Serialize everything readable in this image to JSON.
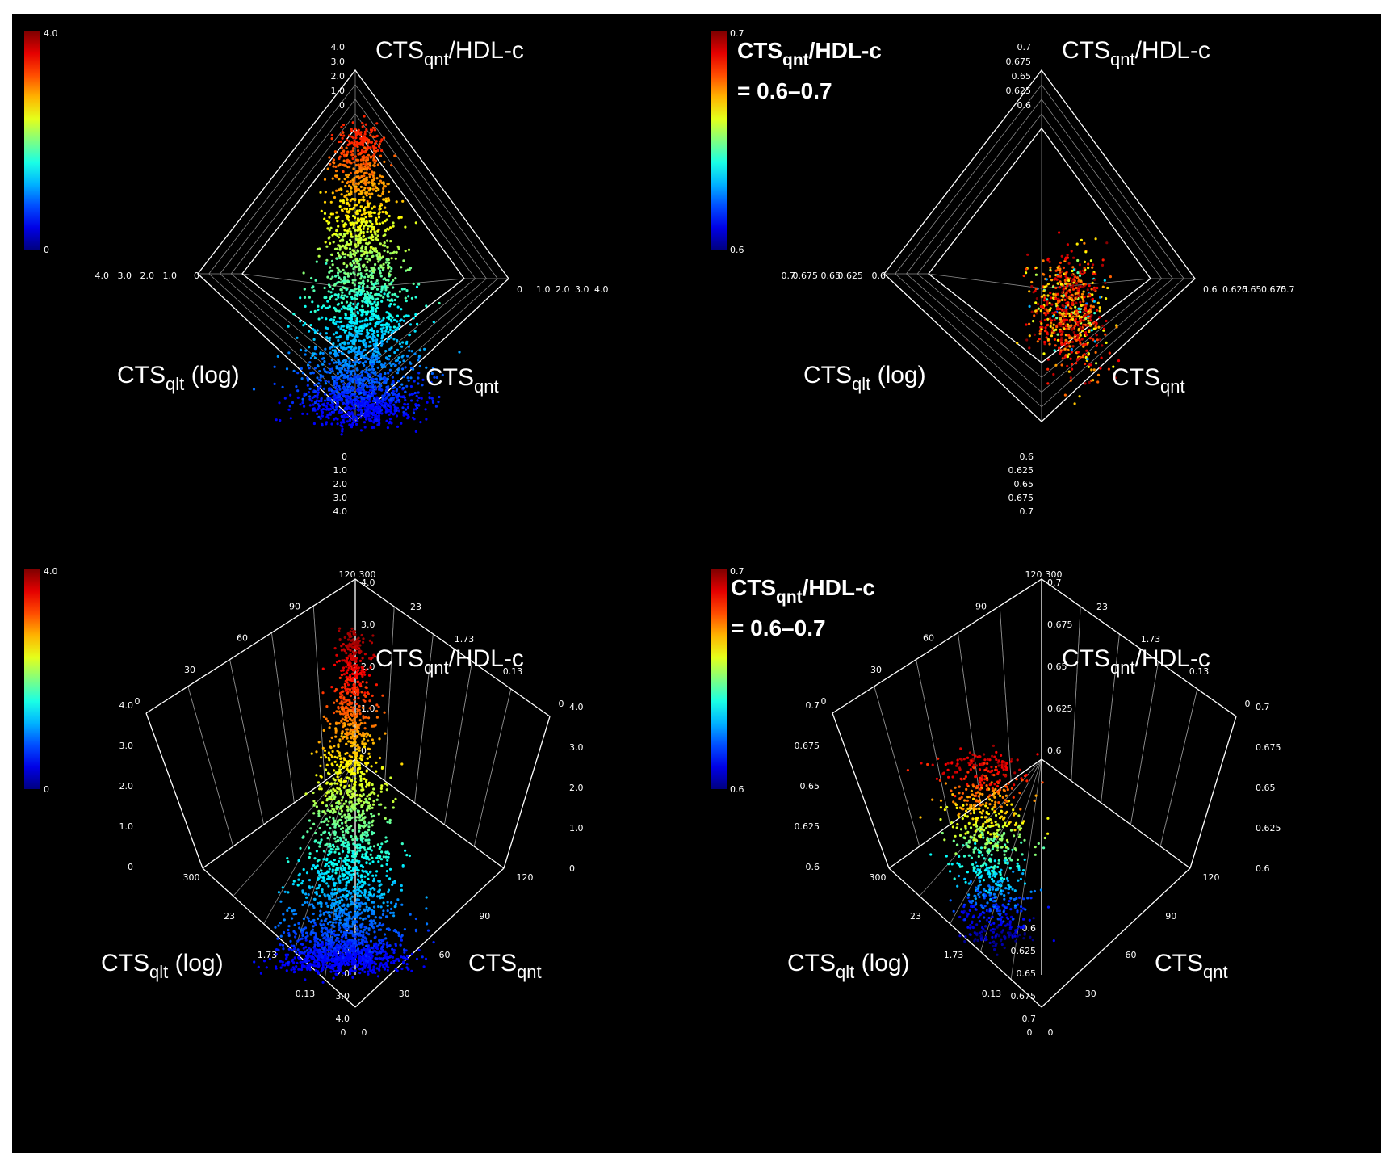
{
  "figure": {
    "panels": [
      {
        "id": "top-left",
        "colorbar": {
          "max_label": "4.0",
          "min_label": "0"
        },
        "note": null,
        "axis_labels": {
          "top": {
            "main": "CTS",
            "sub": "qnt",
            "rest": "/HDL-c"
          },
          "left": {
            "main": "CTS",
            "sub": "qlt",
            "rest": " (log)"
          },
          "right": {
            "main": "CTS",
            "sub": "qnt",
            "rest": ""
          }
        }
      },
      {
        "id": "top-right",
        "colorbar": {
          "max_label": "0.7",
          "min_label": "0.6"
        },
        "note": {
          "main": "CTS",
          "sub": "qnt",
          "rest": "/HDL-c",
          "line2": "= 0.6–0.7"
        },
        "axis_labels": {
          "top": {
            "main": "CTS",
            "sub": "qnt",
            "rest": "/HDL-c"
          },
          "left": {
            "main": "CTS",
            "sub": "qlt",
            "rest": " (log)"
          },
          "right": {
            "main": "CTS",
            "sub": "qnt",
            "rest": ""
          }
        }
      },
      {
        "id": "bottom-left",
        "colorbar": {
          "max_label": "4.0",
          "min_label": "0"
        },
        "note": null,
        "axis_labels": {
          "top": {
            "main": "CTS",
            "sub": "qnt",
            "rest": "/HDL-c"
          },
          "left": {
            "main": "CTS",
            "sub": "qlt",
            "rest": " (log)"
          },
          "right": {
            "main": "CTS",
            "sub": "qnt",
            "rest": ""
          }
        }
      },
      {
        "id": "bottom-right",
        "colorbar": {
          "max_label": "0.7",
          "min_label": "0.6"
        },
        "note": {
          "main": "CTS",
          "sub": "qnt",
          "rest": "/HDL-c",
          "line2": "= 0.6–0.7"
        },
        "axis_labels": {
          "top": {
            "main": "CTS",
            "sub": "qnt",
            "rest": "/HDL-c"
          },
          "left": {
            "main": "CTS",
            "sub": "qlt",
            "rest": " (log)"
          },
          "right": {
            "main": "CTS",
            "sub": "qnt",
            "rest": ""
          }
        }
      }
    ]
  },
  "chart_data": [
    {
      "type": "scatter",
      "panel": "top-left",
      "view": "top-down 3D cube",
      "title": "",
      "color_variable": "CTSqnt/HDL-c",
      "color_range": [
        0,
        4.0
      ],
      "axes": {
        "vertical": {
          "label": "CTSqnt/HDL-c",
          "ticks": [
            "0",
            "1.0",
            "2.0",
            "3.0",
            "4.0"
          ],
          "range": [
            0,
            4.0
          ]
        },
        "left": {
          "label": "CTSqlt (log)",
          "ticks": [
            "0",
            "1.0",
            "2.0",
            "3.0",
            "4.0"
          ]
        },
        "right": {
          "label": "CTSqnt",
          "ticks": [
            "0",
            "1.0",
            "2.0",
            "3.0",
            "4.0"
          ]
        }
      },
      "cloud": {
        "n_points": 2600,
        "value_range": [
          0,
          4.0
        ],
        "description": "dense elongated cloud, blue/cyan at low values, green toward higher values"
      }
    },
    {
      "type": "scatter",
      "panel": "top-right",
      "view": "top-down 3D cube",
      "title": "",
      "color_variable": "CTSqnt/HDL-c",
      "color_range": [
        0.6,
        0.7
      ],
      "axes": {
        "vertical": {
          "label": "CTSqnt/HDL-c",
          "ticks": [
            "0.6",
            "0.625",
            "0.65",
            "0.675",
            "0.7"
          ],
          "range": [
            0.6,
            0.7
          ]
        },
        "left": {
          "label": "CTSqlt (log)",
          "ticks": [
            "0.6",
            "0.625",
            "0.65",
            "0.675",
            "0.7"
          ]
        },
        "right": {
          "label": "CTSqnt",
          "ticks": [
            "0.6",
            "0.625",
            "0.65",
            "0.675",
            "0.7"
          ]
        }
      },
      "cloud": {
        "n_points": 700,
        "value_range": [
          0.6,
          0.7
        ],
        "description": "subset with CTSqnt/HDL-c between 0.6 and 0.7, mostly orange/red"
      }
    },
    {
      "type": "scatter",
      "panel": "bottom-left",
      "view": "oblique 3D",
      "title": "",
      "color_variable": "CTSqnt/HDL-c",
      "color_range": [
        0,
        4.0
      ],
      "axes": {
        "vertical": {
          "label": "CTSqnt/HDL-c",
          "ticks": [
            "0",
            "1.0",
            "2.0",
            "3.0",
            "4.0"
          ],
          "range": [
            0,
            4.0
          ]
        },
        "CTSqlt (log)": {
          "label": "CTSqlt (log)",
          "ticks": [
            "0",
            "0.13",
            "1.73",
            "23",
            "300"
          ]
        },
        "CTSqnt": {
          "label": "CTSqnt",
          "ticks": [
            "0",
            "30",
            "60",
            "90",
            "120"
          ]
        }
      },
      "cloud": {
        "n_points": 2600,
        "value_range": [
          0,
          4.0
        ],
        "description": "tall column of points, blue at base rising through cyan and green to yellow/orange at top"
      }
    },
    {
      "type": "scatter",
      "panel": "bottom-right",
      "view": "oblique 3D",
      "title": "",
      "color_variable": "CTSqnt/HDL-c",
      "color_range": [
        0.6,
        0.7
      ],
      "axes": {
        "vertical": {
          "label": "CTSqnt/HDL-c",
          "ticks": [
            "0.6",
            "0.625",
            "0.65",
            "0.675",
            "0.7"
          ],
          "range": [
            0.6,
            0.7
          ]
        },
        "CTSqlt (log)": {
          "label": "CTSqlt (log)",
          "ticks": [
            "0",
            "0.13",
            "1.73",
            "23",
            "300"
          ]
        },
        "CTSqnt": {
          "label": "CTSqnt",
          "ticks": [
            "0",
            "30",
            "60",
            "90",
            "120"
          ]
        }
      },
      "cloud": {
        "n_points": 900,
        "value_range": [
          0.6,
          0.7
        ],
        "description": "column colored blue at bottom to red at top across 0.6–0.7"
      }
    }
  ],
  "colors": {
    "background": "#000000",
    "axis": "#ffffff",
    "grid": "#8a8a8a",
    "text": "#ffffff"
  }
}
